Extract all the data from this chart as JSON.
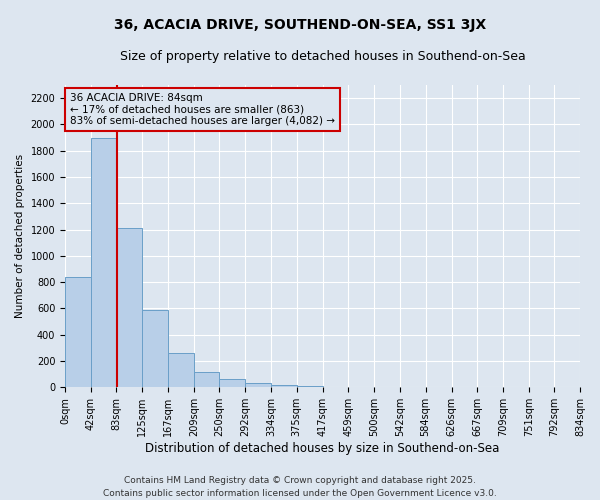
{
  "title": "36, ACACIA DRIVE, SOUTHEND-ON-SEA, SS1 3JX",
  "subtitle": "Size of property relative to detached houses in Southend-on-Sea",
  "xlabel": "Distribution of detached houses by size in Southend-on-Sea",
  "ylabel": "Number of detached properties",
  "background_color": "#dde6f0",
  "bar_color": "#b8cfe8",
  "bar_edge_color": "#6a9fc8",
  "grid_color": "#ffffff",
  "annotation_box_color": "#cc0000",
  "annotation_text": "36 ACACIA DRIVE: 84sqm\n← 17% of detached houses are smaller (863)\n83% of semi-detached houses are larger (4,082) →",
  "red_line_x": 84,
  "bin_edges": [
    0,
    42,
    83,
    125,
    167,
    209,
    250,
    292,
    334,
    375,
    417,
    459,
    500,
    542,
    584,
    626,
    667,
    709,
    751,
    792,
    834
  ],
  "bin_counts": [
    840,
    1900,
    1210,
    590,
    260,
    120,
    65,
    30,
    15,
    8,
    5,
    2,
    0,
    0,
    1,
    0,
    0,
    0,
    0,
    0
  ],
  "ylim": [
    0,
    2300
  ],
  "yticks": [
    0,
    200,
    400,
    600,
    800,
    1000,
    1200,
    1400,
    1600,
    1800,
    2000,
    2200
  ],
  "footer_line1": "Contains HM Land Registry data © Crown copyright and database right 2025.",
  "footer_line2": "Contains public sector information licensed under the Open Government Licence v3.0.",
  "title_fontsize": 10,
  "subtitle_fontsize": 9,
  "xlabel_fontsize": 8.5,
  "ylabel_fontsize": 7.5,
  "tick_fontsize": 7,
  "annotation_fontsize": 7.5,
  "footer_fontsize": 6.5
}
